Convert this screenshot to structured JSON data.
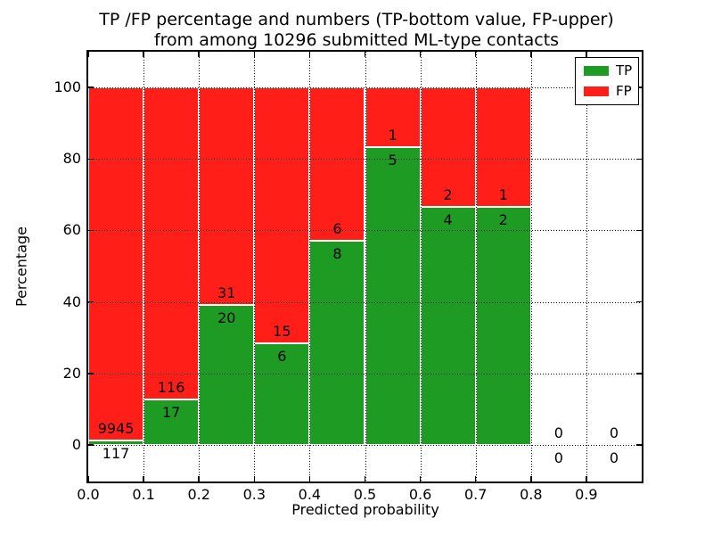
{
  "chart_data": {
    "type": "bar",
    "stacked": true,
    "title_lines": [
      "TP /FP percentage and numbers (TP-bottom value, FP-upper)",
      "from among 10296 submitted ML-type contacts"
    ],
    "submitted_total": 10296,
    "xlabel": "Predicted probability",
    "ylabel": "Percentage",
    "bin_width": 0.1,
    "bin_starts": [
      0.0,
      0.1,
      0.2,
      0.3,
      0.4,
      0.5,
      0.6,
      0.7,
      0.8,
      0.9
    ],
    "series": [
      {
        "name": "TP",
        "color": "#1e9b23",
        "counts": [
          117,
          17,
          20,
          6,
          8,
          5,
          4,
          2,
          0,
          0
        ],
        "percent": [
          1.16,
          12.78,
          39.22,
          28.57,
          57.14,
          83.33,
          66.67,
          66.67,
          0,
          0
        ]
      },
      {
        "name": "FP",
        "color": "#ff1e18",
        "counts": [
          9945,
          116,
          31,
          15,
          6,
          1,
          2,
          1,
          0,
          0
        ],
        "percent": [
          98.84,
          87.22,
          60.78,
          71.43,
          42.86,
          16.67,
          33.33,
          33.33,
          0,
          0
        ]
      }
    ],
    "xticks": [
      0.0,
      0.1,
      0.2,
      0.3,
      0.4,
      0.5,
      0.6,
      0.7,
      0.8,
      0.9
    ],
    "xtick_labels": [
      "0.0",
      "0.1",
      "0.2",
      "0.3",
      "0.4",
      "0.5",
      "0.6",
      "0.7",
      "0.8",
      "0.9"
    ],
    "yticks": [
      0,
      20,
      40,
      60,
      80,
      100
    ],
    "ytick_labels": [
      "0",
      "20",
      "40",
      "60",
      "80",
      "100"
    ],
    "xlim": [
      0.0,
      1.0
    ],
    "ylim": [
      -10.2,
      110.0
    ],
    "grid": true,
    "grid_style": "dotted",
    "legend": {
      "position": "upper right",
      "entries": [
        "TP",
        "FP"
      ]
    }
  }
}
